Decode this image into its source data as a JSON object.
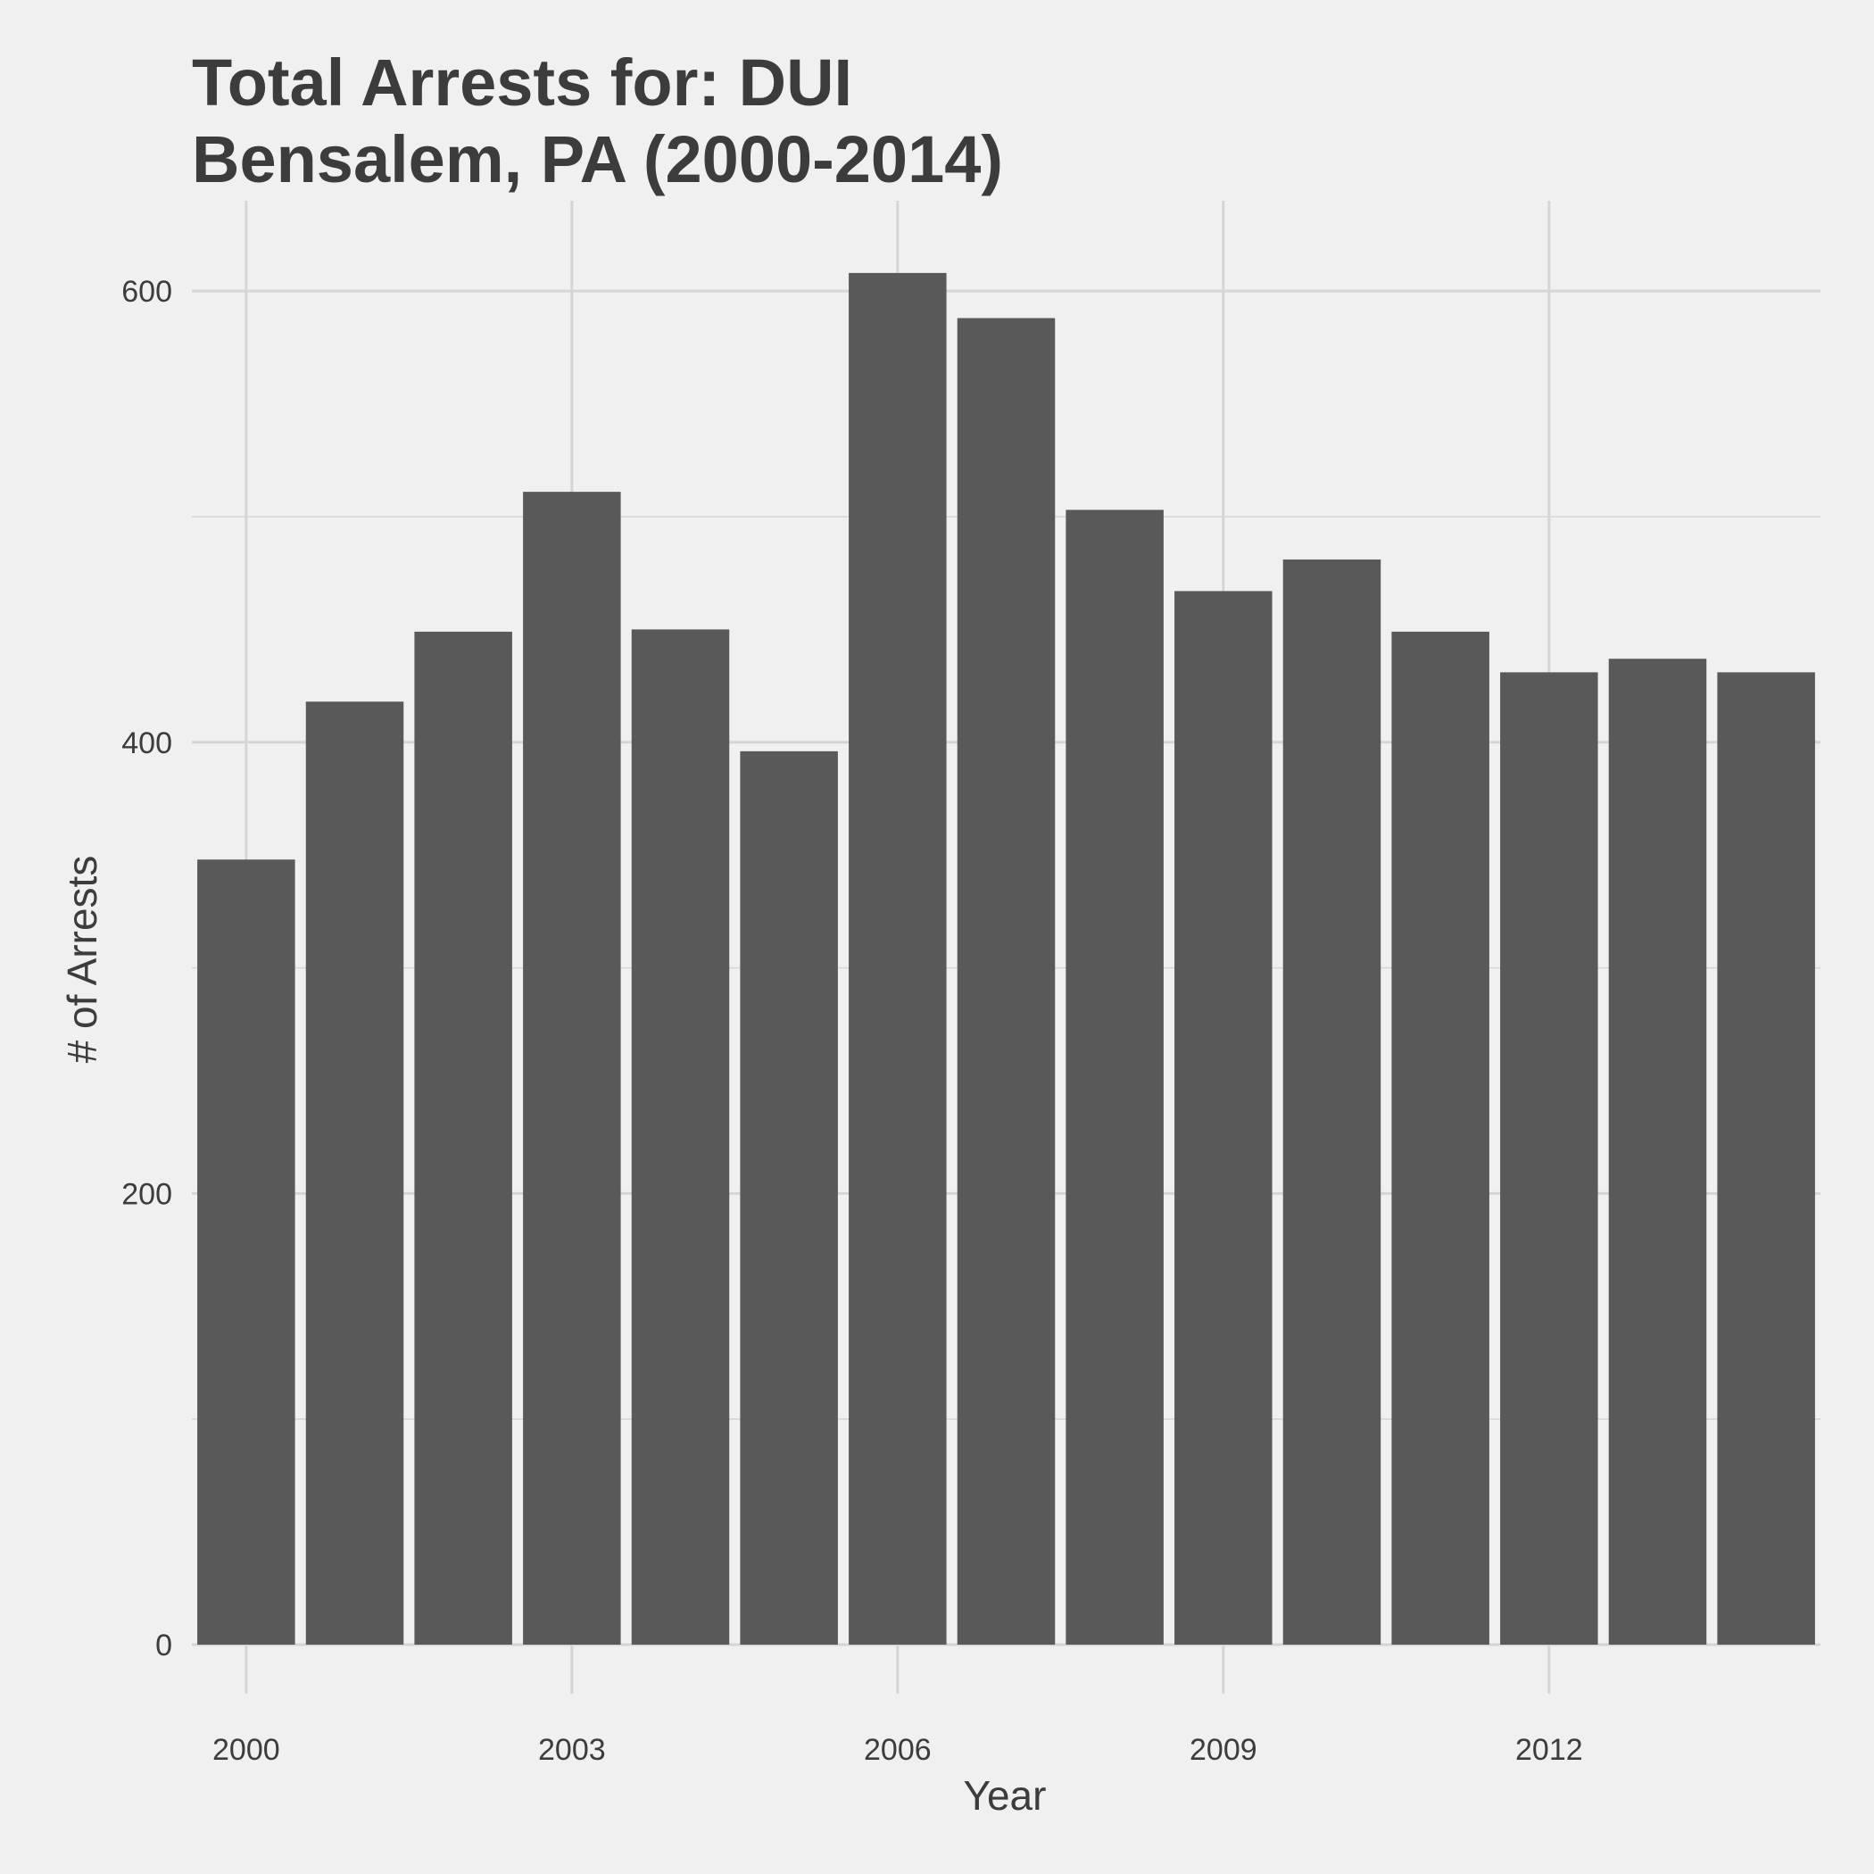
{
  "chart_data": {
    "type": "bar",
    "title": "Total Arrests for: DUI",
    "subtitle": "Bensalem, PA (2000-2014)",
    "xlabel": "Year",
    "ylabel": "# of Arrests",
    "categories": [
      2000,
      2001,
      2002,
      2003,
      2004,
      2005,
      2006,
      2007,
      2008,
      2009,
      2010,
      2011,
      2012,
      2013,
      2014
    ],
    "values": [
      348,
      418,
      449,
      511,
      450,
      396,
      608,
      588,
      503,
      467,
      481,
      449,
      431,
      437,
      431
    ],
    "ylim": [
      0,
      640
    ],
    "xticks": [
      2000,
      2003,
      2006,
      2009,
      2012
    ],
    "yticks": [
      0,
      200,
      400,
      600
    ],
    "grid": true,
    "legend": "none",
    "colors": {
      "bar": "#595959",
      "grid": "#d5d5d5",
      "background": "#f0f0f0",
      "text": "#3c3c3c"
    }
  }
}
